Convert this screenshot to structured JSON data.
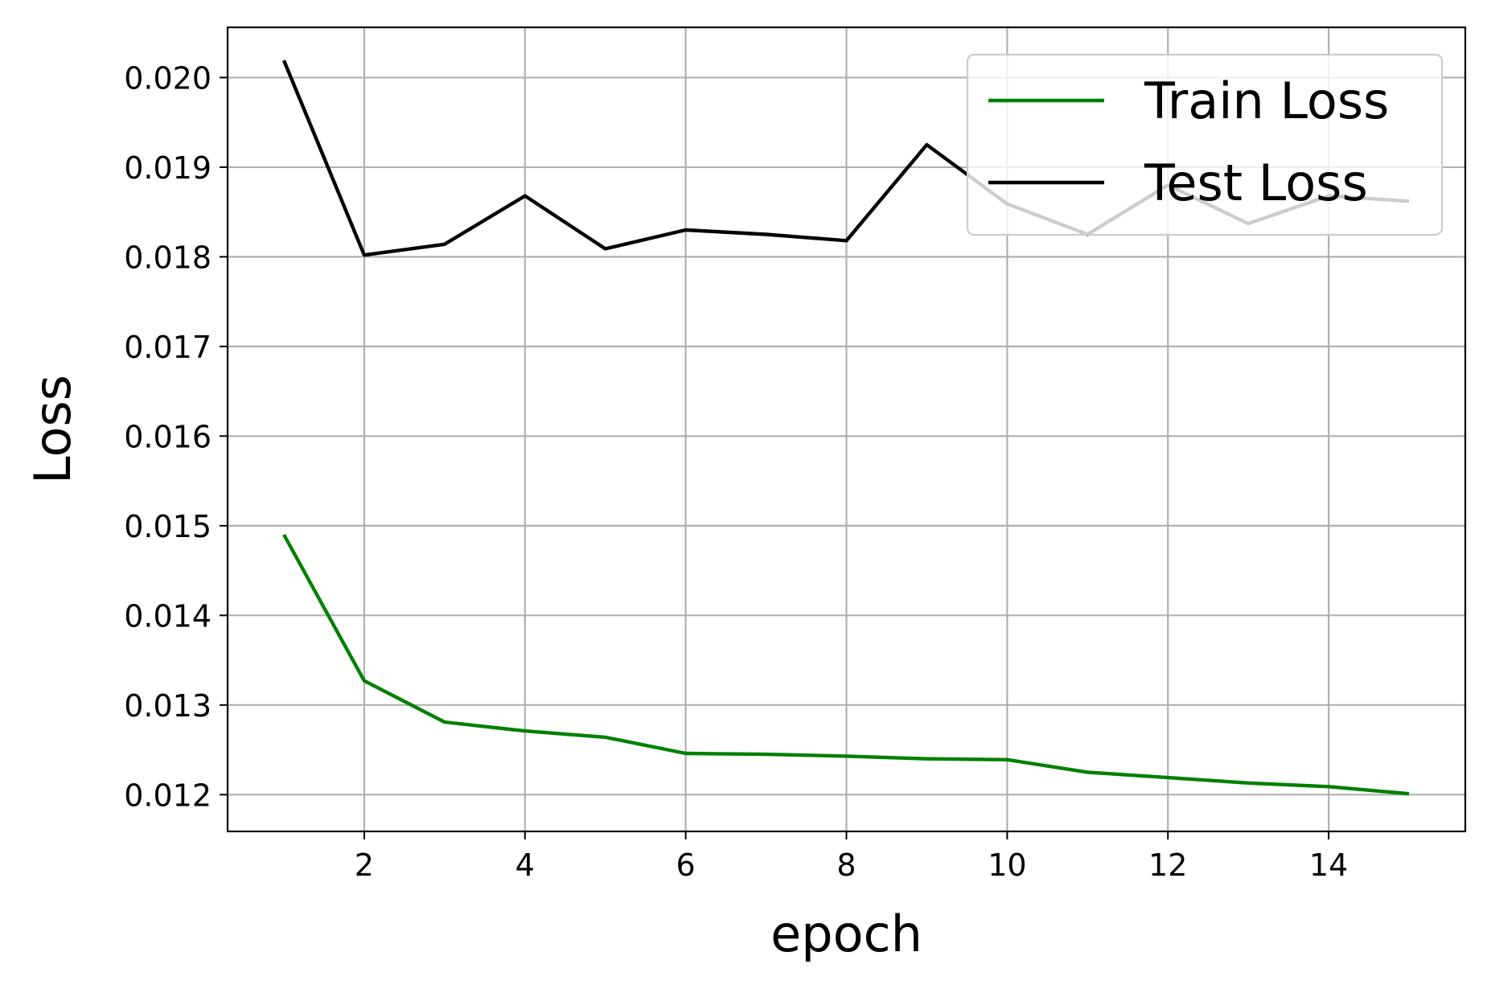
{
  "chart_data": {
    "type": "line",
    "xlabel": "epoch",
    "ylabel": "Loss",
    "x": [
      1,
      2,
      3,
      4,
      5,
      6,
      7,
      8,
      9,
      10,
      11,
      12,
      13,
      14,
      15
    ],
    "series": [
      {
        "name": "Train Loss",
        "color": "#008000",
        "values": [
          0.0149,
          0.01327,
          0.01281,
          0.01271,
          0.01264,
          0.01246,
          0.01245,
          0.01243,
          0.0124,
          0.01239,
          0.01225,
          0.01219,
          0.01213,
          0.01209,
          0.01201
        ]
      },
      {
        "name": "Test Loss",
        "color": "#000000",
        "values": [
          0.02019,
          0.01802,
          0.01814,
          0.01868,
          0.01809,
          0.0183,
          0.01825,
          0.01818,
          0.01925,
          0.01859,
          0.01825,
          0.0188,
          0.01837,
          0.01868,
          0.01862
        ]
      }
    ],
    "xlim": [
      0.3,
      15.7
    ],
    "ylim": [
      0.01159,
      0.02056
    ],
    "xticks": [
      2,
      4,
      6,
      8,
      10,
      12,
      14
    ],
    "xtick_labels": [
      "2",
      "4",
      "6",
      "8",
      "10",
      "12",
      "14"
    ],
    "yticks": [
      0.012,
      0.013,
      0.014,
      0.015,
      0.016,
      0.017,
      0.018,
      0.019,
      0.02
    ],
    "ytick_labels": [
      "0.012",
      "0.013",
      "0.014",
      "0.015",
      "0.016",
      "0.017",
      "0.018",
      "0.019",
      "0.020"
    ],
    "grid": true,
    "legend_position": "top-right"
  }
}
